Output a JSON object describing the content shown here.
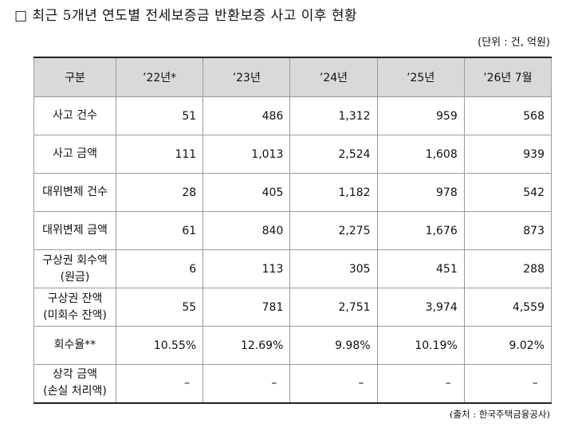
{
  "title": "□ 최근 5개년 연도별 전세보증금 반환보증 사고 이후 현황",
  "unit": "(단위 : 건, 억원)",
  "source": "(출처 : 한국주택금융공사)",
  "headers": [
    "구분",
    "’22년*",
    "’23년",
    "’24년",
    "’25년",
    "’26년 7월"
  ],
  "rows": [
    {
      "label": [
        "사고 건수"
      ],
      "values": [
        "51",
        "486",
        "1,312",
        "959",
        "568"
      ]
    },
    {
      "label": [
        "사고 금액"
      ],
      "values": [
        "111",
        "1,013",
        "2,524",
        "1,608",
        "939"
      ]
    },
    {
      "label": [
        "대위변제 건수"
      ],
      "values": [
        "28",
        "405",
        "1,182",
        "978",
        "542"
      ]
    },
    {
      "label": [
        "대위변제 금액"
      ],
      "values": [
        "61",
        "840",
        "2,275",
        "1,676",
        "873"
      ]
    },
    {
      "label": [
        "구상권 회수액",
        "(원금)"
      ],
      "values": [
        "6",
        "113",
        "305",
        "451",
        "288"
      ]
    },
    {
      "label": [
        "구상권 잔액",
        "(미회수 잔액)"
      ],
      "values": [
        "55",
        "781",
        "2,751",
        "3,974",
        "4,559"
      ]
    },
    {
      "label": [
        "회수율**"
      ],
      "values": [
        "10.55%",
        "12.69%",
        "9.98%",
        "10.19%",
        "9.02%"
      ]
    },
    {
      "label": [
        "상각 금액",
        "(손실 처리액)"
      ],
      "values": [
        "–",
        "–",
        "–",
        "–",
        "–"
      ]
    }
  ]
}
